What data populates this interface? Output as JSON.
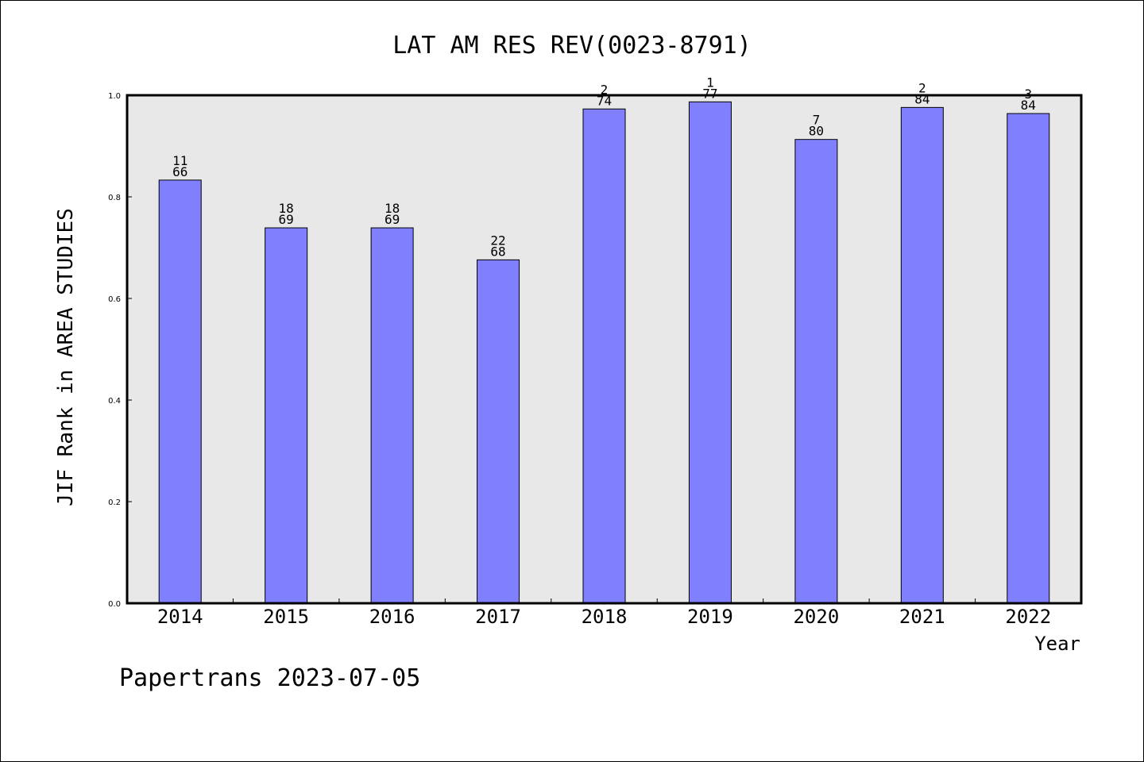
{
  "chart_data": {
    "type": "bar",
    "title": "LAT AM RES REV(0023-8791)",
    "xlabel": "Year",
    "ylabel": "JIF Rank in AREA STUDIES",
    "ylim": [
      0,
      1.0
    ],
    "yticks": [
      "0.0",
      "0.2",
      "0.4",
      "0.6",
      "0.8",
      "1.0"
    ],
    "grid": false,
    "categories": [
      "2014",
      "2015",
      "2016",
      "2017",
      "2018",
      "2019",
      "2020",
      "2021",
      "2022"
    ],
    "values": [
      0.833,
      0.739,
      0.739,
      0.676,
      0.973,
      0.987,
      0.913,
      0.976,
      0.964
    ],
    "bar_labels": [
      {
        "top": "11",
        "bottom": "66"
      },
      {
        "top": "18",
        "bottom": "69"
      },
      {
        "top": "18",
        "bottom": "69"
      },
      {
        "top": "22",
        "bottom": "68"
      },
      {
        "top": "2",
        "bottom": "74"
      },
      {
        "top": "1",
        "bottom": "77"
      },
      {
        "top": "7",
        "bottom": "80"
      },
      {
        "top": "2",
        "bottom": "84"
      },
      {
        "top": "3",
        "bottom": "84"
      }
    ],
    "colors": {
      "bar": "#8080ff",
      "plot_bg": "#e8e8e8"
    }
  },
  "footer": "Papertrans 2023-07-05"
}
